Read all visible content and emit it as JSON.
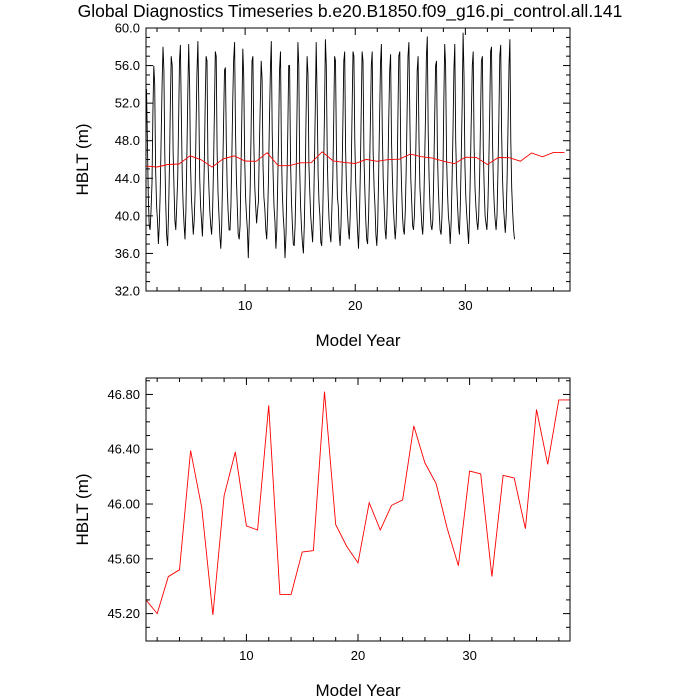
{
  "title": "Global Diagnostics Timeseries b.e20.B1850.f09_g16.pi_control.all.141",
  "chart_data": [
    {
      "type": "line",
      "ylabel": "HBLT (m)",
      "xlabel": "Model Year",
      "xlim": [
        1,
        39.5
      ],
      "ylim": [
        32.0,
        60.0
      ],
      "xticks": [
        10,
        20,
        30
      ],
      "xtick_labels": [
        "10",
        "20",
        "30"
      ],
      "yticks": [
        32.0,
        36.0,
        40.0,
        44.0,
        48.0,
        52.0,
        56.0,
        60.0
      ],
      "ytick_labels": [
        "32.0",
        "36.0",
        "40.0",
        "44.0",
        "48.0",
        "52.0",
        "56.0",
        "60.0"
      ],
      "series": [
        {
          "color": "#000000",
          "x_start": 1.0417,
          "x_step": 0.0833333,
          "values": [
            53.5,
            48,
            42,
            39,
            38.5,
            40.5,
            43.5,
            51,
            56,
            54,
            45,
            41,
            39.5,
            37,
            39,
            42.5,
            48,
            54,
            58,
            55.5,
            46.5,
            41.5,
            38,
            36.8,
            40,
            45,
            51.5,
            57,
            56,
            47,
            43,
            39.5,
            38.5,
            41,
            44,
            50,
            56.5,
            58.2,
            51,
            44,
            41,
            39,
            37.5,
            40.5,
            46,
            53,
            58.3,
            54,
            45.5,
            42,
            40,
            38,
            39.5,
            42.5,
            49,
            55,
            58.6,
            52,
            44,
            41,
            39.5,
            37.8,
            41,
            45.5,
            52,
            57,
            56.5,
            46,
            43,
            40.5,
            39,
            38,
            40,
            45,
            51,
            57.5,
            57,
            47,
            42.5,
            40,
            37.8,
            36.5,
            39,
            44,
            50,
            55.5,
            55.8,
            48,
            43,
            40.5,
            38.5,
            38.5,
            41,
            46,
            52,
            56.5,
            58.5,
            49,
            44,
            41,
            38,
            37.5,
            39,
            45,
            51,
            57.8,
            55,
            46,
            42,
            40,
            38.5,
            35.5,
            39,
            43,
            49,
            56.5,
            57,
            48,
            43,
            41,
            39.2,
            40.5,
            41.5,
            47,
            52,
            56.5,
            54.5,
            45.5,
            42,
            40.8,
            38.5,
            37.5,
            40,
            44,
            50,
            55.5,
            58.6,
            49,
            44.5,
            41,
            39.5,
            36.5,
            38.5,
            43.5,
            48.5,
            55.5,
            57.5,
            47,
            42.5,
            40,
            38.5,
            35.5,
            38,
            43.5,
            49,
            56,
            56,
            46,
            41.5,
            39,
            37,
            36.8,
            39,
            44,
            51,
            58.5,
            56,
            45,
            41,
            38.5,
            37,
            36,
            39,
            44,
            51,
            57,
            55,
            45.5,
            42.5,
            40,
            38.5,
            37.2,
            40,
            45.5,
            51.5,
            58.5,
            52,
            44.5,
            41.5,
            40,
            37.2,
            36.8,
            40,
            45,
            51,
            58.8,
            56,
            46,
            42,
            39.5,
            38,
            37.2,
            40.5,
            44,
            50,
            57,
            56.5,
            47.5,
            42,
            41,
            38,
            36.8,
            39,
            43.5,
            50,
            56.5,
            57.5,
            47,
            43,
            40.5,
            38.5,
            37.5,
            40,
            44,
            50.5,
            57.5,
            57,
            48,
            43.5,
            41,
            38.5,
            36.5,
            39.5,
            44.5,
            51,
            57.5,
            56.5,
            46,
            42.5,
            39.5,
            37.5,
            37,
            40,
            44.5,
            50,
            56,
            57.5,
            47,
            43,
            41,
            38,
            36.8,
            39,
            44,
            50.5,
            56.2,
            58.3,
            49,
            44,
            41,
            38.5,
            37.5,
            40,
            44,
            50,
            55.5,
            57.2,
            48,
            44,
            41,
            39,
            37.5,
            39,
            43,
            50.5,
            57,
            57.5,
            47,
            43,
            40,
            38.5,
            38,
            40.5,
            45,
            51,
            57,
            58.5,
            50,
            44,
            41.5,
            39,
            38.5,
            40,
            44.5,
            50,
            55.5,
            57,
            48,
            43,
            41,
            39,
            38,
            40,
            45,
            50.5,
            57,
            59.1,
            49,
            44,
            41,
            39,
            38.5,
            39.5,
            44,
            50,
            56,
            56.5,
            47,
            43,
            40.5,
            38.5,
            38,
            40,
            44,
            52,
            58.3,
            56,
            46,
            42.5,
            40,
            39,
            37,
            39.5,
            44,
            49,
            55.5,
            58.3,
            48,
            43.5,
            41,
            39,
            38,
            41,
            46,
            52,
            59.5,
            55,
            45.5,
            42,
            40,
            38.5,
            37,
            40,
            45,
            50.5,
            56,
            57.5,
            47.5,
            43,
            41,
            39.5,
            38.5,
            40,
            44,
            50,
            56.5,
            57,
            47,
            43,
            40,
            39.2,
            38.5,
            41,
            45.5,
            51,
            57.5,
            58,
            48,
            43.5,
            41,
            39.5,
            38.5,
            40,
            45,
            50.5,
            57,
            58.2,
            49,
            44,
            41,
            39.5,
            38.2,
            40,
            44,
            50,
            56,
            58.8,
            48,
            43,
            40.5,
            38.5,
            37.5
          ]
        },
        {
          "color": "#ff0000",
          "x": [
            1,
            2,
            3,
            4,
            5,
            6,
            7,
            8,
            9,
            10,
            11,
            12,
            13,
            14,
            15,
            16,
            17,
            18,
            19,
            20,
            21,
            22,
            23,
            24,
            25,
            26,
            27,
            28,
            29,
            30,
            31,
            32,
            33,
            34,
            35,
            36,
            37,
            38,
            39
          ],
          "values": [
            45.3,
            45.2,
            45.47,
            45.52,
            46.39,
            45.97,
            45.19,
            46.06,
            46.38,
            45.84,
            45.81,
            46.72,
            45.34,
            45.34,
            45.65,
            45.66,
            46.82,
            45.85,
            45.69,
            45.57,
            46.01,
            45.81,
            45.99,
            46.03,
            46.57,
            46.3,
            46.15,
            45.82,
            45.55,
            46.24,
            46.22,
            45.47,
            46.21,
            46.19,
            45.82,
            46.69,
            46.29,
            46.76,
            46.76
          ]
        }
      ]
    },
    {
      "type": "line",
      "ylabel": "HBLT (m)",
      "xlabel": "Model Year",
      "xlim": [
        1,
        39
      ],
      "ylim": [
        45.0,
        46.92
      ],
      "xticks": [
        10,
        20,
        30
      ],
      "xtick_labels": [
        "10",
        "20",
        "30"
      ],
      "yticks": [
        45.2,
        45.6,
        46.0,
        46.4,
        46.8
      ],
      "ytick_labels": [
        "45.20",
        "45.60",
        "46.00",
        "46.40",
        "46.80"
      ],
      "series": [
        {
          "color": "#ff0000",
          "x": [
            1,
            2,
            3,
            4,
            5,
            6,
            7,
            8,
            9,
            10,
            11,
            12,
            13,
            14,
            15,
            16,
            17,
            18,
            19,
            20,
            21,
            22,
            23,
            24,
            25,
            26,
            27,
            28,
            29,
            30,
            31,
            32,
            33,
            34,
            35,
            36,
            37,
            38,
            39
          ],
          "values": [
            45.3,
            45.2,
            45.47,
            45.52,
            46.39,
            45.97,
            45.19,
            46.06,
            46.38,
            45.84,
            45.81,
            46.72,
            45.34,
            45.34,
            45.65,
            45.66,
            46.82,
            45.85,
            45.69,
            45.57,
            46.01,
            45.81,
            45.99,
            46.03,
            46.57,
            46.3,
            46.15,
            45.82,
            45.55,
            46.24,
            46.22,
            45.47,
            46.21,
            46.19,
            45.82,
            46.69,
            46.29,
            46.76,
            46.76
          ]
        }
      ]
    }
  ]
}
